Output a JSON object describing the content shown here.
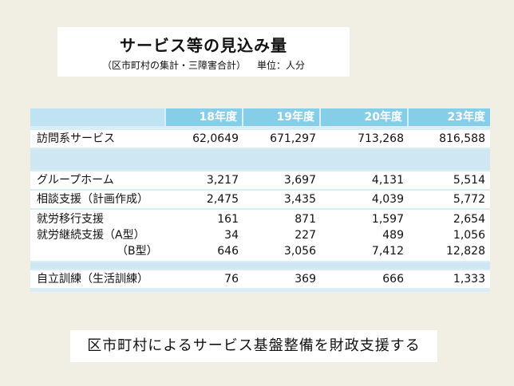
{
  "title": {
    "main": "サービス等の見込み量",
    "subtitle": "（区市町村の集計・三障害合計）",
    "unit": "単位：人分"
  },
  "table": {
    "headers": [
      "",
      "18年度",
      "19年度",
      "20年度",
      "23年度"
    ],
    "rows": {
      "houmon": {
        "label": "訪問系サービス",
        "values": [
          "62,0649",
          "671,297",
          "713,268",
          "816,588"
        ]
      },
      "group": {
        "label": "グループホーム",
        "values": [
          "3,217",
          "3,697",
          "4,131",
          "5,514"
        ]
      },
      "soudan": {
        "label": "相談支援（計画作成）",
        "values": [
          "2,475",
          "3,435",
          "4,039",
          "5,772"
        ]
      },
      "ikou": {
        "label": "就労移行支援",
        "values": [
          "161",
          "871",
          "1,597",
          "2,654"
        ]
      },
      "keizoku_a": {
        "label": "就労継続支援",
        "sub": "（A型）",
        "values": [
          "34",
          "227",
          "489",
          "1,056"
        ]
      },
      "keizoku_b": {
        "sub": "（B型）",
        "values": [
          "646",
          "3,056",
          "7,412",
          "12,828"
        ]
      },
      "jiritsu": {
        "label": "自立訓練（生活訓練）",
        "values": [
          "76",
          "369",
          "666",
          "1,333"
        ]
      }
    }
  },
  "footer": {
    "text": "区市町村によるサービス基盤整備を財政支援する"
  }
}
